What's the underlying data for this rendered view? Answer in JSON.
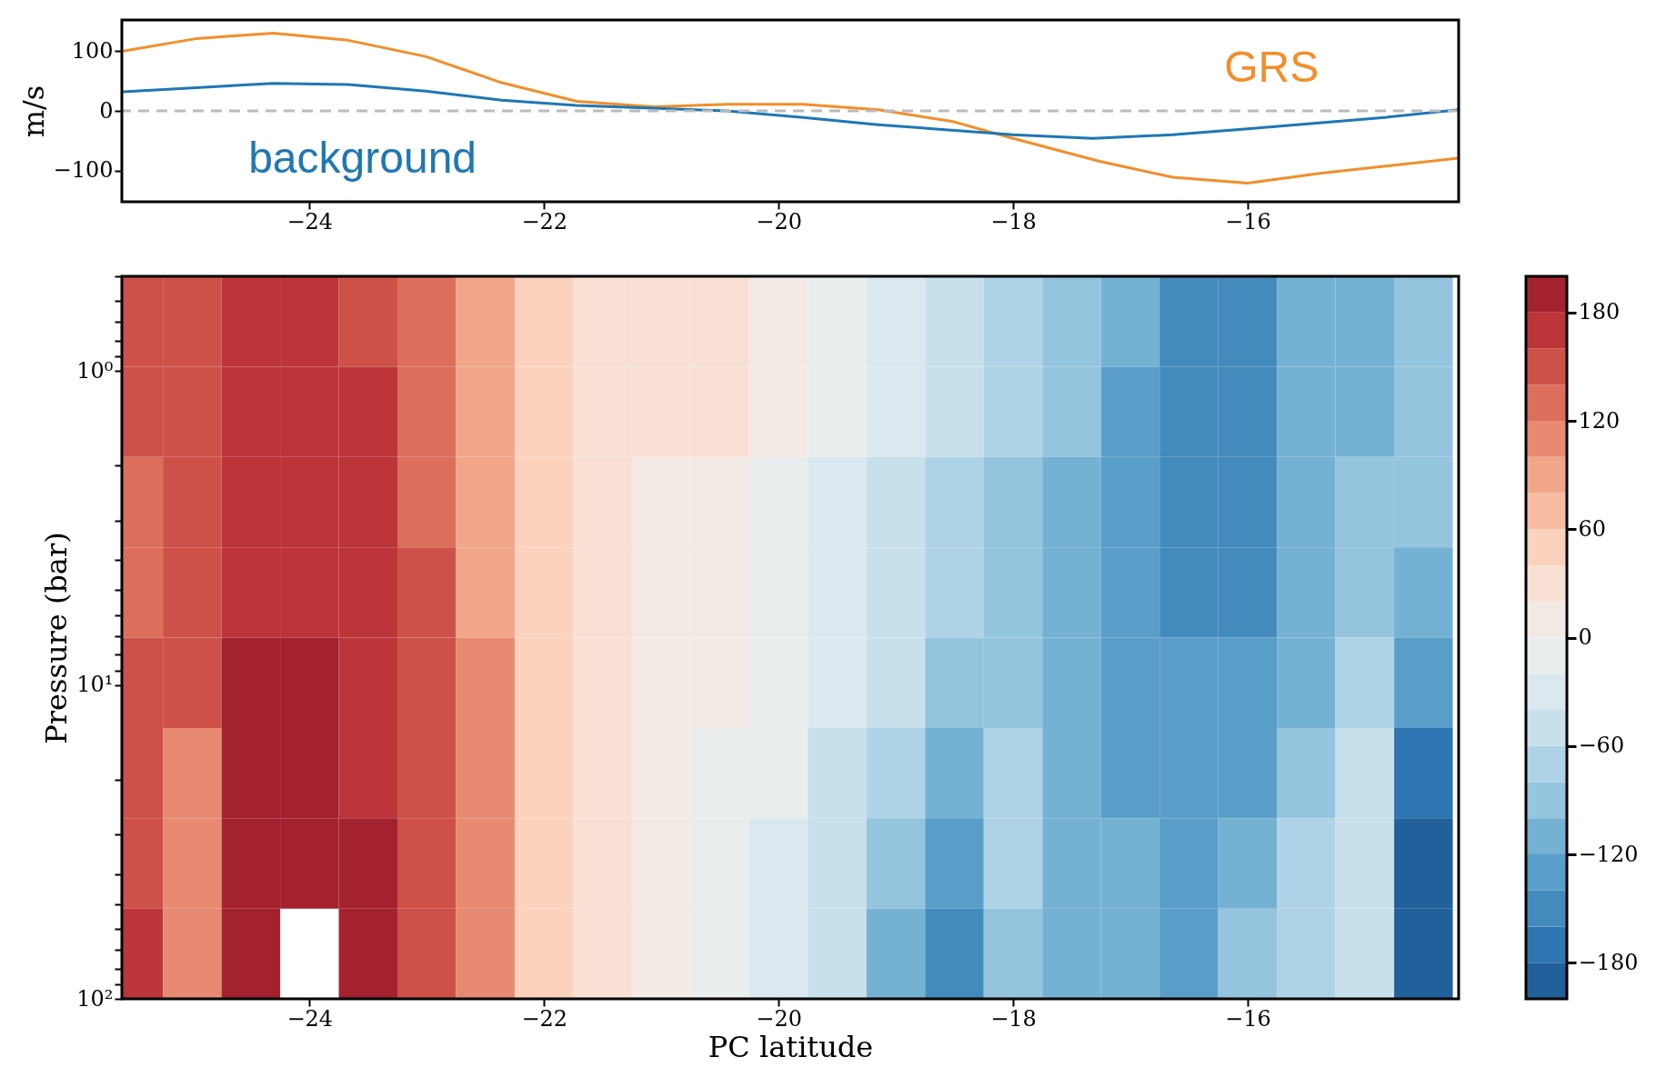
{
  "chart_data": [
    {
      "type": "line",
      "ylabel": "m/s",
      "xlim": [
        -25.6,
        -14.2
      ],
      "ylim": [
        -152,
        152
      ],
      "xticks": [
        -24,
        -22,
        -20,
        -18,
        -16
      ],
      "yticks": [
        -100,
        0,
        100
      ],
      "grid": false,
      "series": [
        {
          "name": "GRS",
          "color": "#f28e2b",
          "x": [
            -25.59,
            -24.96,
            -24.31,
            -23.67,
            -23.01,
            -22.36,
            -21.72,
            -21.07,
            -20.44,
            -19.79,
            -19.15,
            -18.51,
            -18.0,
            -17.27,
            -16.64,
            -16.0,
            -15.37,
            -14.2
          ],
          "values": [
            100,
            121,
            130,
            118,
            91,
            47,
            16,
            7,
            11,
            11,
            2,
            -18,
            -46,
            -84,
            -111,
            -121,
            -104,
            -79
          ]
        },
        {
          "name": "background",
          "color": "#1f77b4",
          "x": [
            -25.59,
            -24.31,
            -23.67,
            -23.01,
            -22.36,
            -21.72,
            -20.44,
            -19.79,
            -19.15,
            -18.0,
            -17.32,
            -16.64,
            -16.0,
            -14.83,
            -14.2
          ],
          "values": [
            32,
            46,
            44,
            33,
            18,
            9,
            0,
            -11,
            -23,
            -40,
            -46,
            -40,
            -30,
            -11,
            2
          ]
        }
      ],
      "ref_lines": [
        {
          "axis": "y",
          "value": 0,
          "color": "#bbbbbb",
          "line_style": "dashed"
        }
      ]
    },
    {
      "type": "heatmap",
      "xlabel": "PC latitude",
      "ylabel": "Pressure (bar)",
      "log": "y",
      "grid": false,
      "x": [
        -25.5,
        -25,
        -24.5,
        -24,
        -23.5,
        -23,
        -22.5,
        -22,
        -21.5,
        -21,
        -20.5,
        -20,
        -19.5,
        -19,
        -18.5,
        -18,
        -17.5,
        -17,
        -16.5,
        -16,
        -15.5,
        -15,
        -14.5
      ],
      "xlim": [
        -25.6,
        -14.2
      ],
      "xticks": [
        -24,
        -22,
        -20,
        -18,
        -16
      ],
      "ylim": [
        100,
        0.5
      ],
      "yticks": [
        {
          "value": 0.5,
          "label": null
        },
        {
          "value": 0.6,
          "label": null
        },
        {
          "value": 0.7,
          "label": null
        },
        {
          "value": 0.8,
          "label": null
        },
        {
          "value": 0.9,
          "label": null
        },
        {
          "value": 1,
          "label": "10⁰"
        },
        {
          "value": 2,
          "label": null
        },
        {
          "value": 3,
          "label": null
        },
        {
          "value": 4,
          "label": null
        },
        {
          "value": 5,
          "label": null
        },
        {
          "value": 6,
          "label": null
        },
        {
          "value": 7,
          "label": null
        },
        {
          "value": 8,
          "label": null
        },
        {
          "value": 9,
          "label": null
        },
        {
          "value": 10,
          "label": "10¹"
        },
        {
          "value": 20,
          "label": null
        },
        {
          "value": 30,
          "label": null
        },
        {
          "value": 40,
          "label": null
        },
        {
          "value": 50,
          "label": null
        },
        {
          "value": 60,
          "label": null
        },
        {
          "value": 70,
          "label": null
        },
        {
          "value": 80,
          "label": null
        },
        {
          "value": 90,
          "label": null
        },
        {
          "value": 100,
          "label": "10²"
        }
      ],
      "clim": [
        -200,
        200
      ],
      "cticks": [
        -180,
        -120,
        -60,
        0,
        60,
        120,
        180
      ],
      "cells": [
        [
          140,
          150,
          170,
          170,
          150,
          130,
          90,
          50,
          30,
          30,
          30,
          10,
          -10,
          -30,
          -50,
          -70,
          -90,
          -110,
          -150,
          -150,
          -110,
          -110,
          -90
        ],
        [
          140,
          150,
          170,
          170,
          170,
          130,
          90,
          50,
          30,
          30,
          30,
          10,
          -10,
          -30,
          -50,
          -70,
          -90,
          -130,
          -150,
          -150,
          -110,
          -110,
          -90
        ],
        [
          130,
          150,
          170,
          170,
          170,
          130,
          90,
          50,
          30,
          10,
          10,
          -10,
          -30,
          -50,
          -70,
          -90,
          -110,
          -130,
          -150,
          -150,
          -110,
          -90,
          -90
        ],
        [
          130,
          150,
          170,
          170,
          170,
          140,
          90,
          50,
          30,
          10,
          10,
          -10,
          -30,
          -50,
          -70,
          -90,
          -110,
          -130,
          -150,
          -150,
          -110,
          -90,
          -110
        ],
        [
          140,
          150,
          190,
          190,
          170,
          150,
          110,
          50,
          30,
          10,
          10,
          -10,
          -30,
          -50,
          -90,
          -90,
          -110,
          -130,
          -130,
          -130,
          -110,
          -70,
          -130
        ],
        [
          140,
          110,
          190,
          190,
          170,
          150,
          110,
          50,
          30,
          10,
          -10,
          -10,
          -50,
          -70,
          -110,
          -70,
          -110,
          -130,
          -130,
          -130,
          -90,
          -50,
          -170
        ],
        [
          150,
          110,
          190,
          190,
          190,
          150,
          110,
          50,
          30,
          10,
          -10,
          -30,
          -50,
          -90,
          -130,
          -70,
          -110,
          -110,
          -130,
          -110,
          -70,
          -50,
          -190
        ],
        [
          170,
          110,
          190,
          null,
          190,
          150,
          110,
          50,
          30,
          10,
          -10,
          -30,
          -50,
          -110,
          -150,
          -90,
          -110,
          -110,
          -130,
          -90,
          -70,
          -50,
          -190
        ]
      ]
    }
  ]
}
